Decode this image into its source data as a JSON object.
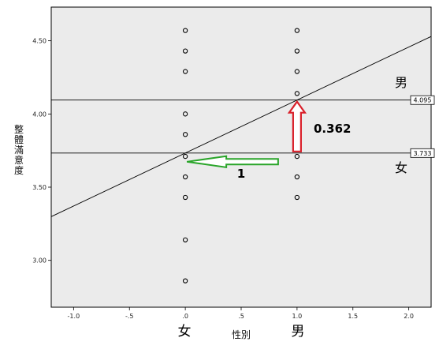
{
  "chart_data": {
    "type": "scatter",
    "xlabel": "性別",
    "ylabel": "整體滿意度",
    "xlim": [
      -1.2,
      2.2
    ],
    "ylim": [
      2.68,
      4.73
    ],
    "x_ticks": [
      "-1.0",
      "-.5",
      ".0",
      ".5",
      "1.0",
      "1.5",
      "2.0"
    ],
    "x_tick_values": [
      -1.0,
      -0.5,
      0.0,
      0.5,
      1.0,
      1.5,
      2.0
    ],
    "y_ticks": [
      "3.00",
      "3.50",
      "4.00",
      "4.50"
    ],
    "y_tick_values": [
      3.0,
      3.5,
      4.0,
      4.5
    ],
    "category_labels": [
      {
        "x": 0,
        "label": "女"
      },
      {
        "x": 1,
        "label": "男"
      }
    ],
    "points": [
      {
        "x": 0,
        "y": 4.57
      },
      {
        "x": 0,
        "y": 4.43
      },
      {
        "x": 0,
        "y": 4.29
      },
      {
        "x": 0,
        "y": 4.0
      },
      {
        "x": 0,
        "y": 3.86
      },
      {
        "x": 0,
        "y": 3.71
      },
      {
        "x": 0,
        "y": 3.57
      },
      {
        "x": 0,
        "y": 3.43
      },
      {
        "x": 0,
        "y": 3.14
      },
      {
        "x": 0,
        "y": 2.86
      },
      {
        "x": 1,
        "y": 4.57
      },
      {
        "x": 1,
        "y": 4.43
      },
      {
        "x": 1,
        "y": 4.29
      },
      {
        "x": 1,
        "y": 4.14
      },
      {
        "x": 1,
        "y": 4.0
      },
      {
        "x": 1,
        "y": 3.71
      },
      {
        "x": 1,
        "y": 3.57
      },
      {
        "x": 1,
        "y": 3.43
      }
    ],
    "regression": {
      "intercept": 3.733,
      "slope": 0.362
    },
    "reference_lines": [
      {
        "y": 4.095,
        "label": "4.095",
        "group": "男"
      },
      {
        "y": 3.733,
        "label": "3.733",
        "group": "女"
      }
    ],
    "annotations": {
      "vertical_arrow_label": "0.362",
      "horizontal_arrow_label": "1",
      "vertical_arrow_color": "#d9202a",
      "horizontal_arrow_color": "#2aa52a"
    },
    "grid": false,
    "plot_background": "#ebebeb"
  }
}
